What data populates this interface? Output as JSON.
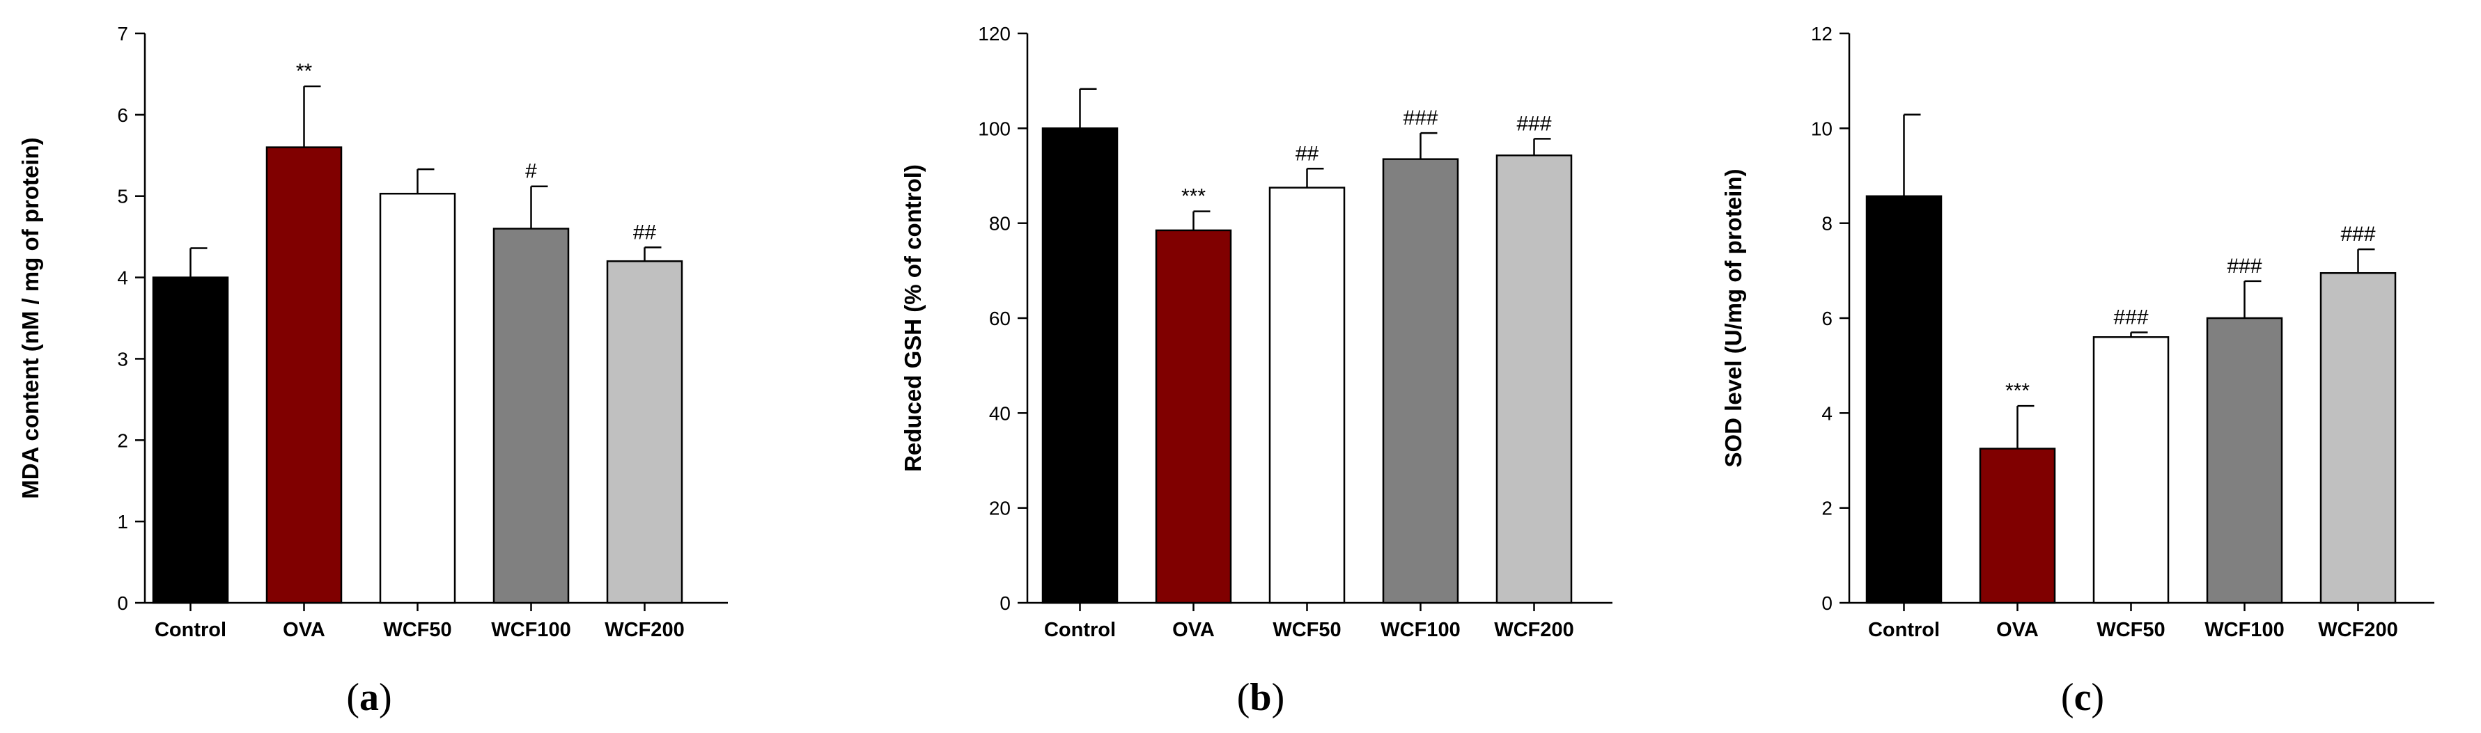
{
  "chart_data": [
    {
      "type": "bar",
      "panel": "a",
      "title": "",
      "xlabel": "",
      "ylabel": "MDA content (nM / mg of protein)",
      "ylim": [
        0,
        7
      ],
      "yticks": [
        "0",
        "1",
        "2",
        "3",
        "4",
        "5",
        "6",
        "7"
      ],
      "categories": [
        "Control",
        "OVA",
        "WCF50",
        "WCF100",
        "WCF200"
      ],
      "values": [
        4.0,
        5.6,
        5.03,
        4.6,
        4.2
      ],
      "errors": [
        0.36,
        0.75,
        0.3,
        0.52,
        0.17
      ],
      "colors": [
        "#000000",
        "#800000",
        "#ffffff",
        "#808080",
        "#c0c0c0"
      ],
      "annotations": [
        "",
        "**",
        "",
        "#",
        "##"
      ],
      "panel_label": "a"
    },
    {
      "type": "bar",
      "panel": "b",
      "title": "",
      "xlabel": "",
      "ylabel": "Reduced GSH (% of control)",
      "ylim": [
        0,
        120
      ],
      "yticks": [
        "0",
        "20",
        "40",
        "60",
        "80",
        "100",
        "120"
      ],
      "categories": [
        "Control",
        "OVA",
        "WCF50",
        "WCF100",
        "WCF200"
      ],
      "values": [
        100,
        78.5,
        87.5,
        93.5,
        94.3
      ],
      "errors": [
        8.3,
        4.0,
        4.0,
        5.5,
        3.5
      ],
      "colors": [
        "#000000",
        "#800000",
        "#ffffff",
        "#808080",
        "#c0c0c0"
      ],
      "annotations": [
        "",
        "***",
        "##",
        "###",
        "###"
      ],
      "panel_label": "b"
    },
    {
      "type": "bar",
      "panel": "c",
      "title": "",
      "xlabel": "",
      "ylabel": "SOD level (U/mg of protein)",
      "ylim": [
        0,
        12
      ],
      "yticks": [
        "0",
        "2",
        "4",
        "6",
        "8",
        "10",
        "12"
      ],
      "categories": [
        "Control",
        "OVA",
        "WCF50",
        "WCF100",
        "WCF200"
      ],
      "values": [
        8.57,
        3.25,
        5.6,
        6.0,
        6.95
      ],
      "errors": [
        1.72,
        0.9,
        0.1,
        0.78,
        0.5
      ],
      "colors": [
        "#000000",
        "#800000",
        "#ffffff",
        "#808080",
        "#c0c0c0"
      ],
      "annotations": [
        "",
        "***",
        "###",
        "###",
        "###"
      ],
      "panel_label": "c"
    }
  ]
}
